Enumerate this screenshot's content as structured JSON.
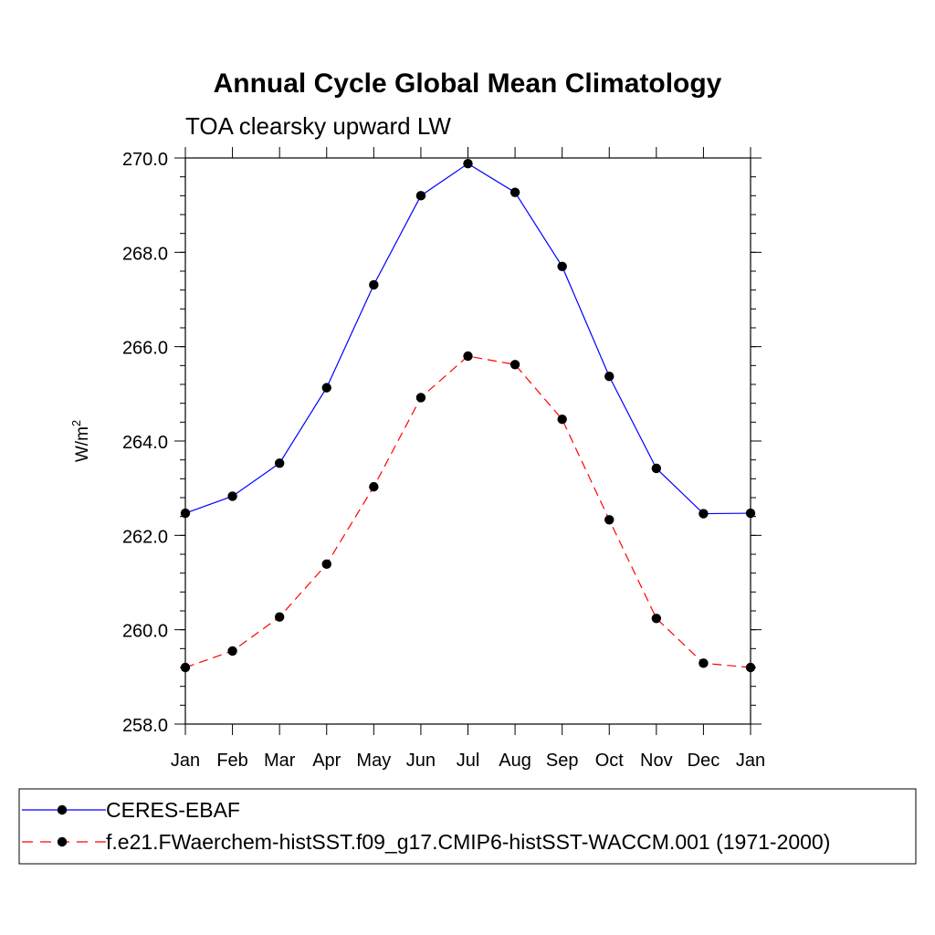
{
  "chart_data": {
    "type": "line",
    "title": "Annual Cycle Global Mean Climatology",
    "subtitle": "TOA clearsky upward LW",
    "ylabel": "W/m",
    "ylabel_sup": "2",
    "categories": [
      "Jan",
      "Feb",
      "Mar",
      "Apr",
      "May",
      "Jun",
      "Jul",
      "Aug",
      "Sep",
      "Oct",
      "Nov",
      "Dec",
      "Jan"
    ],
    "ylim": [
      258.0,
      270.0
    ],
    "yticks": [
      258.0,
      260.0,
      262.0,
      264.0,
      266.0,
      268.0,
      270.0
    ],
    "ytick_labels": [
      "258.0",
      "260.0",
      "262.0",
      "264.0",
      "266.0",
      "268.0",
      "270.0"
    ],
    "series": [
      {
        "name": "CERES-EBAF",
        "color": "#0000ff",
        "dash": "solid",
        "values": [
          262.47,
          262.83,
          263.53,
          265.13,
          267.31,
          269.2,
          269.88,
          269.27,
          267.7,
          265.37,
          263.42,
          262.46,
          262.47
        ]
      },
      {
        "name": "f.e21.FWaerchem-histSST.f09_g17.CMIP6-histSST-WACCM.001 (1971-2000)",
        "color": "#ff0000",
        "dash": "dashed",
        "values": [
          259.2,
          259.55,
          260.27,
          261.39,
          263.03,
          264.92,
          265.8,
          265.62,
          264.46,
          262.33,
          260.24,
          259.29,
          259.2
        ]
      }
    ],
    "legend_position": "bottom"
  }
}
